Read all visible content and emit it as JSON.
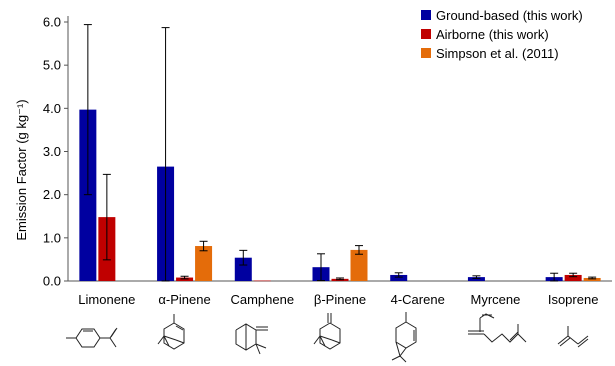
{
  "chart_data": {
    "type": "bar",
    "categories": [
      "Limonene",
      "α-Pinene",
      "Camphene",
      "β-Pinene",
      "4-Carene",
      "Myrcene",
      "Isoprene"
    ],
    "series": [
      {
        "name": "Ground-based (this work)",
        "color": "#0000a0",
        "values": [
          3.97,
          2.65,
          0.54,
          0.32,
          0.14,
          0.09,
          0.09
        ],
        "errors": [
          1.97,
          3.22,
          0.17,
          0.31,
          0.05,
          0.03,
          0.09
        ]
      },
      {
        "name": "Airborne (this work)",
        "color": "#c00000",
        "values": [
          1.48,
          0.08,
          0.01,
          0.05,
          0.0,
          0.0,
          0.14
        ],
        "errors": [
          0.99,
          0.03,
          0.0,
          0.02,
          0.0,
          0.0,
          0.04
        ]
      },
      {
        "name": "Simpson et al. (2011)",
        "color": "#e46c0a",
        "values": [
          0.0,
          0.81,
          0.0,
          0.72,
          0.0,
          0.0,
          0.07
        ],
        "errors": [
          0.0,
          0.11,
          0.0,
          0.1,
          0.0,
          0.0,
          0.02
        ]
      }
    ],
    "ylabel": "Emission Factor (g kg⁻¹)",
    "ylim": [
      0,
      6
    ],
    "yticks": [
      "0.0",
      "1.0",
      "2.0",
      "3.0",
      "4.0",
      "5.0",
      "6.0"
    ],
    "legend_position": "top-right",
    "grid": false
  },
  "structures": [
    "limonene-structure",
    "alpha-pinene-structure",
    "camphene-structure",
    "beta-pinene-structure",
    "4-carene-structure",
    "myrcene-structure",
    "isoprene-structure"
  ]
}
